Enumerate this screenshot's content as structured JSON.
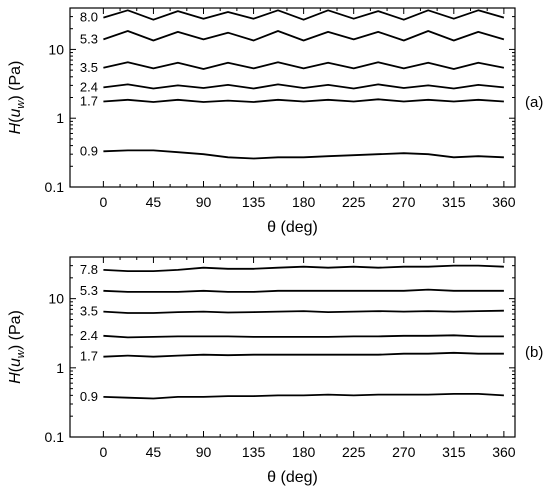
{
  "chart_data": [
    {
      "type": "line",
      "panel_label": "(a)",
      "xlabel": "θ (deg)",
      "ylabel": "H(u_w) (Pa)",
      "ylabel_parts": {
        "main": "H(",
        "italic": "u",
        "sub": "w",
        "close": ") (Pa)"
      },
      "xlabel_parts": {
        "symbol": "θ",
        "rest": "(deg)"
      },
      "xlim": [
        -30,
        370
      ],
      "ylim": [
        0.1,
        40
      ],
      "yscale": "log",
      "xticks": [
        0,
        45,
        90,
        135,
        180,
        225,
        270,
        315,
        360
      ],
      "yticks": [
        0.1,
        1,
        10
      ],
      "grid": false,
      "series": [
        {
          "name": "8.0",
          "x": [
            0,
            22,
            45,
            67,
            90,
            112,
            135,
            157,
            180,
            202,
            225,
            247,
            270,
            292,
            315,
            337,
            360
          ],
          "y": [
            29,
            37,
            27,
            36,
            28,
            35,
            28,
            37,
            27,
            37,
            28,
            36,
            27,
            37,
            28,
            37,
            29
          ]
        },
        {
          "name": "5.3",
          "x": [
            0,
            22,
            45,
            67,
            90,
            112,
            135,
            157,
            180,
            202,
            225,
            247,
            270,
            292,
            315,
            337,
            360
          ],
          "y": [
            14,
            18.5,
            13.5,
            18,
            14,
            17.5,
            13.5,
            18.5,
            13.5,
            18,
            14,
            18,
            13.5,
            18.5,
            13.5,
            18,
            14
          ]
        },
        {
          "name": "3.5",
          "x": [
            0,
            22,
            45,
            67,
            90,
            112,
            135,
            157,
            180,
            202,
            225,
            247,
            270,
            292,
            315,
            337,
            360
          ],
          "y": [
            5.4,
            6.5,
            5.3,
            6.4,
            5.2,
            6.4,
            5.3,
            6.5,
            5.3,
            6.4,
            5.3,
            6.5,
            5.3,
            6.4,
            5.2,
            6.4,
            5.4
          ]
        },
        {
          "name": "2.4",
          "x": [
            0,
            22,
            45,
            67,
            90,
            112,
            135,
            157,
            180,
            202,
            225,
            247,
            270,
            292,
            315,
            337,
            360
          ],
          "y": [
            2.8,
            3.1,
            2.7,
            3.0,
            2.75,
            3.05,
            2.7,
            3.1,
            2.75,
            3.05,
            2.7,
            3.1,
            2.75,
            3.0,
            2.7,
            3.05,
            2.8
          ]
        },
        {
          "name": "1.7",
          "x": [
            0,
            22,
            45,
            67,
            90,
            112,
            135,
            157,
            180,
            202,
            225,
            247,
            270,
            292,
            315,
            337,
            360
          ],
          "y": [
            1.75,
            1.85,
            1.72,
            1.85,
            1.72,
            1.8,
            1.72,
            1.85,
            1.75,
            1.85,
            1.75,
            1.88,
            1.75,
            1.85,
            1.75,
            1.85,
            1.75
          ]
        },
        {
          "name": "0.9",
          "x": [
            0,
            22,
            45,
            67,
            90,
            112,
            135,
            157,
            180,
            202,
            225,
            247,
            270,
            292,
            315,
            337,
            360
          ],
          "y": [
            0.33,
            0.34,
            0.34,
            0.32,
            0.3,
            0.27,
            0.26,
            0.27,
            0.27,
            0.28,
            0.29,
            0.3,
            0.31,
            0.3,
            0.27,
            0.28,
            0.27
          ]
        }
      ]
    },
    {
      "type": "line",
      "panel_label": "(b)",
      "xlabel": "θ (deg)",
      "ylabel": "H(u_w) (Pa)",
      "ylabel_parts": {
        "main": "H(",
        "italic": "u",
        "sub": "w",
        "close": ") (Pa)"
      },
      "xlabel_parts": {
        "symbol": "θ",
        "rest": "(deg)"
      },
      "xlim": [
        -30,
        370
      ],
      "ylim": [
        0.1,
        40
      ],
      "yscale": "log",
      "xticks": [
        0,
        45,
        90,
        135,
        180,
        225,
        270,
        315,
        360
      ],
      "yticks": [
        0.1,
        1,
        10
      ],
      "grid": false,
      "series": [
        {
          "name": "7.8",
          "x": [
            0,
            22,
            45,
            67,
            90,
            112,
            135,
            157,
            180,
            202,
            225,
            247,
            270,
            292,
            315,
            337,
            360
          ],
          "y": [
            26,
            25,
            25,
            26,
            28,
            27,
            27,
            28,
            29,
            28,
            29,
            28,
            29,
            29,
            30,
            30,
            29
          ]
        },
        {
          "name": "5.3",
          "x": [
            0,
            22,
            45,
            67,
            90,
            112,
            135,
            157,
            180,
            202,
            225,
            247,
            270,
            292,
            315,
            337,
            360
          ],
          "y": [
            13,
            12.5,
            12.5,
            12.5,
            13,
            12.5,
            12.5,
            13,
            13,
            13,
            13,
            13,
            13,
            13.5,
            13,
            13,
            13
          ]
        },
        {
          "name": "3.5",
          "x": [
            0,
            22,
            45,
            67,
            90,
            112,
            135,
            157,
            180,
            202,
            225,
            247,
            270,
            292,
            315,
            337,
            360
          ],
          "y": [
            6.5,
            6.2,
            6.2,
            6.4,
            6.5,
            6.3,
            6.4,
            6.5,
            6.6,
            6.4,
            6.5,
            6.6,
            6.5,
            6.6,
            6.5,
            6.6,
            6.7
          ]
        },
        {
          "name": "2.4",
          "x": [
            0,
            22,
            45,
            67,
            90,
            112,
            135,
            157,
            180,
            202,
            225,
            247,
            270,
            292,
            315,
            337,
            360
          ],
          "y": [
            2.9,
            2.75,
            2.8,
            2.85,
            2.85,
            2.85,
            2.8,
            2.8,
            2.8,
            2.8,
            2.85,
            2.85,
            2.9,
            2.9,
            2.95,
            2.85,
            2.85
          ]
        },
        {
          "name": "1.7",
          "x": [
            0,
            22,
            45,
            67,
            90,
            112,
            135,
            157,
            180,
            202,
            225,
            247,
            270,
            292,
            315,
            337,
            360
          ],
          "y": [
            1.45,
            1.5,
            1.45,
            1.5,
            1.55,
            1.52,
            1.55,
            1.55,
            1.55,
            1.55,
            1.55,
            1.55,
            1.6,
            1.6,
            1.65,
            1.6,
            1.6
          ]
        },
        {
          "name": "0.9",
          "x": [
            0,
            22,
            45,
            67,
            90,
            112,
            135,
            157,
            180,
            202,
            225,
            247,
            270,
            292,
            315,
            337,
            360
          ],
          "y": [
            0.38,
            0.37,
            0.36,
            0.38,
            0.38,
            0.39,
            0.39,
            0.4,
            0.4,
            0.41,
            0.4,
            0.41,
            0.41,
            0.41,
            0.42,
            0.42,
            0.4
          ]
        }
      ]
    }
  ]
}
